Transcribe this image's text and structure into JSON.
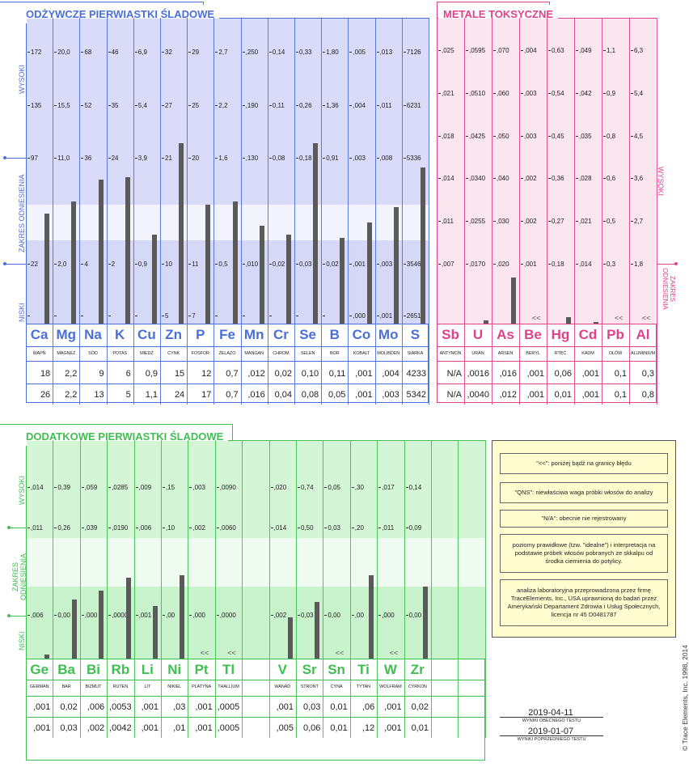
{
  "legend_notes": [
    "\"<<\":  poniżej bądź na granicy błędu",
    "\"QNS\":  niewłaściwa waga próbki włosów do analizy",
    "\"N/A\": obecnie nie rejestrowany",
    "poziomy prawidłowe (tzw. \"idealne\") i interpretacja na podstawie próbek włosów pobranych ze skkalpu od środka ciemienia do potylicy.",
    "analiza laboratoryjna przeprowadzona przez firmę TraceElements, Inc., USA uprawnioną do badań przez Amerykański Departament Zdrowia i Usług Społecznych, licencja nr 45 D0481787"
  ],
  "dates": {
    "current": "2019-04-11",
    "current_label": "WYNIKI OBECNEGO TESTU",
    "previous": "2019-01-07",
    "previous_label": "WYNIKI POPRZEDNIEGO TESTU"
  },
  "copyright": "© Trace Elements, Inc. 1998, 2014",
  "colors": {
    "nutritional": "#4a6fd8",
    "toxic": "#e0428a",
    "additional": "#3fbf4f"
  },
  "chart_data": [
    {
      "type": "bar",
      "title": "ODŻYWCZE PIERWIASTKI ŚLADOWE",
      "band_labels": {
        "high": "WYSOKI",
        "ref": "ZAKRES ODNIESIENIA",
        "low": "NISKI"
      },
      "level_fractions": {
        "note": "bar heights as fraction of chart range (low→high)"
      },
      "elements": [
        {
          "sym": "Ca",
          "name": "WAPŃ",
          "ticks": [
            "172",
            "135",
            "97",
            "22",
            ""
          ],
          "current": "18",
          "previous": "26",
          "level": 0.36
        },
        {
          "sym": "Mg",
          "name": "MAGNEZ",
          "ticks": [
            "20,0",
            "15,5",
            "11,0",
            "2,0",
            ""
          ],
          "current": "2,2",
          "previous": "2,2",
          "level": 0.4
        },
        {
          "sym": "Na",
          "name": "SÓD",
          "ticks": [
            "68",
            "52",
            "36",
            "4",
            ""
          ],
          "current": "9",
          "previous": "13",
          "level": 0.47
        },
        {
          "sym": "K",
          "name": "POTAS",
          "ticks": [
            "46",
            "35",
            "24",
            "2",
            ""
          ],
          "current": "6",
          "previous": "5",
          "level": 0.48
        },
        {
          "sym": "Cu",
          "name": "MIEDŹ",
          "ticks": [
            "6,9",
            "5,4",
            "3,9",
            "0,9",
            ""
          ],
          "current": "0,9",
          "previous": "1,1",
          "level": 0.29
        },
        {
          "sym": "Zn",
          "name": "CYNK",
          "ticks": [
            "32",
            "27",
            "21",
            "10",
            "5"
          ],
          "current": "15",
          "previous": "24",
          "level": 0.59
        },
        {
          "sym": "P",
          "name": "FOSFOR",
          "ticks": [
            "29",
            "25",
            "20",
            "11",
            "7"
          ],
          "current": "12",
          "previous": "17",
          "level": 0.39
        },
        {
          "sym": "Fe",
          "name": "ŻELAZO",
          "ticks": [
            "2,7",
            "2,2",
            "1,6",
            "0,5",
            ""
          ],
          "current": "0,7",
          "previous": "0,7",
          "level": 0.4
        },
        {
          "sym": "Mn",
          "name": "MANGAN",
          "ticks": [
            ",250",
            ",190",
            ",130",
            ",010",
            ""
          ],
          "current": ",012",
          "previous": ",016",
          "level": 0.32
        },
        {
          "sym": "Cr",
          "name": "CHROM",
          "ticks": [
            "0,14",
            "0,11",
            "0,08",
            "0,02",
            ""
          ],
          "current": "0,02",
          "previous": "0,04",
          "level": 0.29
        },
        {
          "sym": "Se",
          "name": "SELEN",
          "ticks": [
            "0,33",
            "0,26",
            "0,18",
            "0,03",
            ""
          ],
          "current": "0,10",
          "previous": "0,08",
          "level": 0.59
        },
        {
          "sym": "B",
          "name": "BOR",
          "ticks": [
            "1,80",
            "1,36",
            "0,91",
            "0,02",
            ""
          ],
          "current": "0,11",
          "previous": "0,05",
          "level": 0.28
        },
        {
          "sym": "Co",
          "name": "KOBALT",
          "ticks": [
            ",005",
            ",004",
            ",003",
            ",001",
            ",000"
          ],
          "current": ",001",
          "previous": ",001",
          "level": 0.33
        },
        {
          "sym": "Mo",
          "name": "MOLIBDEN",
          "ticks": [
            ",013",
            ",011",
            ",008",
            ",003",
            ",001"
          ],
          "current": ",004",
          "previous": ",003",
          "level": 0.38
        },
        {
          "sym": "S",
          "name": "SIARKA",
          "ticks": [
            "7126",
            "6231",
            "5336",
            "3546",
            "2651"
          ],
          "current": "4233",
          "previous": "5342",
          "level": 0.51
        }
      ]
    },
    {
      "type": "bar",
      "title": "METALE TOKSYCZNE",
      "band_labels": {
        "high": "WYSOKI",
        "ref": "ZAKRES ODNIESIENIA"
      },
      "elements": [
        {
          "sym": "Sb",
          "name": "ANTYMON",
          "ticks": [
            ",025",
            ",021",
            ",018",
            ",014",
            ",011",
            ",007"
          ],
          "current": "N/A",
          "previous": "N/A",
          "level": 0,
          "mark": ""
        },
        {
          "sym": "U",
          "name": "URAN",
          "ticks": [
            ",0595",
            ",0510",
            ",0425",
            ",0340",
            ",0255",
            ",0170"
          ],
          "current": ",0016",
          "previous": ",0040",
          "level": 0.01,
          "mark": ""
        },
        {
          "sym": "As",
          "name": "ARSEN",
          "ticks": [
            ",070",
            ",060",
            ",050",
            ",040",
            ",030",
            ",020"
          ],
          "current": ",016",
          "previous": ",012",
          "level": 0.15,
          "mark": ""
        },
        {
          "sym": "Be",
          "name": "BERYL",
          "ticks": [
            ",004",
            ",003",
            ",003",
            ",002",
            ",002",
            ",001"
          ],
          "current": ",001",
          "previous": ",001",
          "level": 0,
          "mark": "<<"
        },
        {
          "sym": "Hg",
          "name": "RTĘĆ",
          "ticks": [
            "0,63",
            "0,54",
            "0,45",
            "0,36",
            "0,27",
            "0,18"
          ],
          "current": "0,06",
          "previous": "0,01",
          "level": 0.02,
          "mark": ""
        },
        {
          "sym": "Cd",
          "name": "KADM",
          "ticks": [
            ",049",
            ",042",
            ",035",
            ",028",
            ",021",
            ",014"
          ],
          "current": ",001",
          "previous": ",001",
          "level": 0.005,
          "mark": ""
        },
        {
          "sym": "Pb",
          "name": "OŁÓW",
          "ticks": [
            "1,1",
            "0,9",
            "0,8",
            "0,6",
            "0,5",
            "0,3"
          ],
          "current": "0,1",
          "previous": "0,1",
          "level": 0,
          "mark": "<<"
        },
        {
          "sym": "Al",
          "name": "ALUMINIUM",
          "ticks": [
            "6,3",
            "5,4",
            "4,5",
            "3,6",
            "2,7",
            "1,8"
          ],
          "current": "0,3",
          "previous": "0,8",
          "level": 0,
          "mark": "<<"
        }
      ]
    },
    {
      "type": "bar",
      "title": "DODATKOWE PIERWIASTKI ŚLADOWE",
      "band_labels": {
        "high": "WYSOKI",
        "ref": "ZAKRES ODNIESIENIA",
        "low": "NISKI"
      },
      "elements": [
        {
          "sym": "Ge",
          "name": "GERMAN",
          "ticks": [
            ",014",
            ",011",
            ",006"
          ],
          "current": ",001",
          "previous": ",001",
          "level": 0.02,
          "mark": ""
        },
        {
          "sym": "Ba",
          "name": "BAR",
          "ticks": [
            "0,39",
            "0,26",
            "0,00"
          ],
          "current": "0,02",
          "previous": "0,03",
          "level": 0.27,
          "mark": ""
        },
        {
          "sym": "Bi",
          "name": "BIZMUT",
          "ticks": [
            ",059",
            ",039",
            ",000"
          ],
          "current": ",006",
          "previous": ",002",
          "level": 0.31,
          "mark": ""
        },
        {
          "sym": "Rb",
          "name": "RUTEN",
          "ticks": [
            ",0285",
            ",0190",
            ",0000"
          ],
          "current": ",0053",
          "previous": ",0042",
          "level": 0.37,
          "mark": ""
        },
        {
          "sym": "Li",
          "name": "LIT",
          "ticks": [
            ",009",
            ",006",
            ",001"
          ],
          "current": ",001",
          "previous": ",001",
          "level": 0.24,
          "mark": ""
        },
        {
          "sym": "Ni",
          "name": "NIKIEL",
          "ticks": [
            ",15",
            ",10",
            ",00"
          ],
          "current": ",03",
          "previous": ",01",
          "level": 0.38,
          "mark": ""
        },
        {
          "sym": "Pt",
          "name": "PLATYNA",
          "ticks": [
            ",003",
            ",002",
            ",000"
          ],
          "current": ",001",
          "previous": ",001",
          "level": 0,
          "mark": "<<"
        },
        {
          "sym": "Tl",
          "name": "THALLIUM",
          "ticks": [
            ",0090",
            ",0060",
            ",0000"
          ],
          "current": ",0005",
          "previous": ",0005",
          "level": 0,
          "mark": "<<"
        },
        {
          "sym": "",
          "name": "",
          "ticks": [
            "",
            "",
            ""
          ],
          "current": "",
          "previous": "",
          "level": 0,
          "mark": ""
        },
        {
          "sym": "V",
          "name": "WANAD",
          "ticks": [
            ",020",
            ",014",
            ",002"
          ],
          "current": ",001",
          "previous": ",005",
          "level": 0.19,
          "mark": ""
        },
        {
          "sym": "Sr",
          "name": "STRONT",
          "ticks": [
            "0,74",
            "0,50",
            "0,03"
          ],
          "current": "0,03",
          "previous": "0,06",
          "level": 0.26,
          "mark": ""
        },
        {
          "sym": "Sn",
          "name": "CYNA",
          "ticks": [
            "0,05",
            "0,03",
            "0,00"
          ],
          "current": "0,01",
          "previous": "0,01",
          "level": 0,
          "mark": "<<"
        },
        {
          "sym": "Ti",
          "name": "TYTAN",
          "ticks": [
            ",30",
            ",20",
            ",00"
          ],
          "current": ",06",
          "previous": ",12",
          "level": 0.38,
          "mark": ""
        },
        {
          "sym": "W",
          "name": "WOLFRAM",
          "ticks": [
            ",017",
            ",011",
            ",000"
          ],
          "current": ",001",
          "previous": ",001",
          "level": 0,
          "mark": "<<"
        },
        {
          "sym": "Zr",
          "name": "CYRKON",
          "ticks": [
            "0,14",
            "0,09",
            "0,00"
          ],
          "current": "0,02",
          "previous": "0,01",
          "level": 0.33,
          "mark": ""
        },
        {
          "sym": "",
          "name": "",
          "ticks": [
            "",
            "",
            ""
          ],
          "current": "",
          "previous": "",
          "level": 0,
          "mark": ""
        },
        {
          "sym": "",
          "name": "",
          "ticks": [
            "",
            "",
            ""
          ],
          "current": "",
          "previous": "",
          "level": 0,
          "mark": ""
        }
      ]
    }
  ]
}
